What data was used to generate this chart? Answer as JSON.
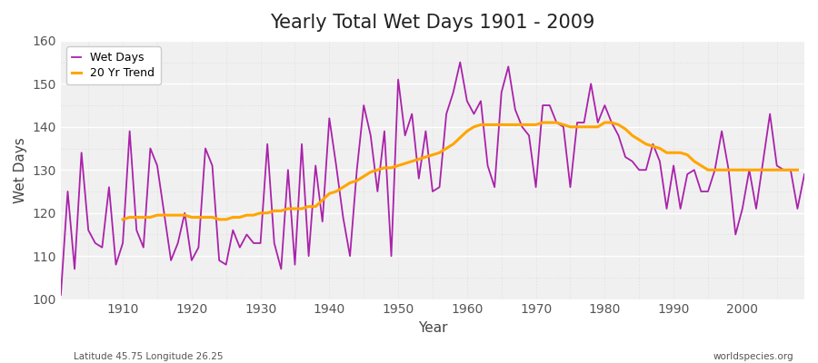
{
  "title": "Yearly Total Wet Days 1901 - 2009",
  "xlabel": "Year",
  "ylabel": "Wet Days",
  "xlim": [
    1901,
    2009
  ],
  "ylim": [
    100,
    160
  ],
  "yticks": [
    100,
    110,
    120,
    130,
    140,
    150,
    160
  ],
  "xticks": [
    1910,
    1920,
    1930,
    1940,
    1950,
    1960,
    1970,
    1980,
    1990,
    2000
  ],
  "background_color": "#f0f0f0",
  "fig_background": "#ffffff",
  "wet_days_color": "#aa22aa",
  "trend_color": "#ffa500",
  "footnote_left": "Latitude 45.75 Longitude 26.25",
  "footnote_right": "worldspecies.org",
  "legend_wet_days": "Wet Days",
  "legend_trend": "20 Yr Trend",
  "years": [
    1901,
    1902,
    1903,
    1904,
    1905,
    1906,
    1907,
    1908,
    1909,
    1910,
    1911,
    1912,
    1913,
    1914,
    1915,
    1916,
    1917,
    1918,
    1919,
    1920,
    1921,
    1922,
    1923,
    1924,
    1925,
    1926,
    1927,
    1928,
    1929,
    1930,
    1931,
    1932,
    1933,
    1934,
    1935,
    1936,
    1937,
    1938,
    1939,
    1940,
    1941,
    1942,
    1943,
    1944,
    1945,
    1946,
    1947,
    1948,
    1949,
    1950,
    1951,
    1952,
    1953,
    1954,
    1955,
    1956,
    1957,
    1958,
    1959,
    1960,
    1961,
    1962,
    1963,
    1964,
    1965,
    1966,
    1967,
    1968,
    1969,
    1970,
    1971,
    1972,
    1973,
    1974,
    1975,
    1976,
    1977,
    1978,
    1979,
    1980,
    1981,
    1982,
    1983,
    1984,
    1985,
    1986,
    1987,
    1988,
    1989,
    1990,
    1991,
    1992,
    1993,
    1994,
    1995,
    1996,
    1997,
    1998,
    1999,
    2000,
    2001,
    2002,
    2003,
    2004,
    2005,
    2006,
    2007,
    2008,
    2009
  ],
  "wet_days": [
    101,
    125,
    107,
    134,
    116,
    113,
    112,
    126,
    108,
    113,
    139,
    116,
    112,
    135,
    131,
    120,
    109,
    113,
    120,
    109,
    112,
    135,
    131,
    109,
    108,
    116,
    112,
    115,
    113,
    113,
    136,
    113,
    107,
    130,
    108,
    136,
    110,
    131,
    118,
    142,
    131,
    119,
    110,
    130,
    145,
    138,
    125,
    139,
    110,
    151,
    138,
    143,
    128,
    139,
    125,
    126,
    143,
    148,
    155,
    146,
    143,
    146,
    131,
    126,
    148,
    154,
    144,
    140,
    138,
    126,
    145,
    145,
    141,
    140,
    126,
    141,
    141,
    150,
    141,
    145,
    141,
    138,
    133,
    132,
    130,
    130,
    136,
    132,
    121,
    131,
    121,
    129,
    130,
    125,
    125,
    130,
    139,
    130,
    115,
    121,
    130,
    121,
    132,
    143,
    131,
    130,
    130,
    121,
    129
  ],
  "trend": [
    null,
    null,
    null,
    null,
    null,
    null,
    null,
    null,
    null,
    118.5,
    119,
    119,
    119,
    119,
    119.5,
    119.5,
    119.5,
    119.5,
    119.5,
    119,
    119,
    119,
    119,
    118.5,
    118.5,
    119,
    119,
    119.5,
    119.5,
    120,
    120,
    120.5,
    120.5,
    121,
    121,
    121,
    121.5,
    121.5,
    123,
    124.5,
    125,
    126,
    127,
    127.5,
    128.5,
    129.5,
    130,
    130.5,
    130.5,
    131,
    131.5,
    132,
    132.5,
    133,
    133.5,
    134,
    135,
    136,
    137.5,
    139,
    140,
    140.5,
    140.5,
    140.5,
    140.5,
    140.5,
    140.5,
    140.5,
    140.5,
    140.5,
    141,
    141,
    141,
    140.5,
    140,
    140,
    140,
    140,
    140,
    141,
    141,
    140.5,
    139.5,
    138,
    137,
    136,
    135.5,
    135,
    134,
    134,
    134,
    133.5,
    132,
    131,
    130,
    130,
    130,
    130,
    130,
    130,
    130,
    130,
    130,
    130,
    130,
    130,
    130,
    130,
    null
  ]
}
